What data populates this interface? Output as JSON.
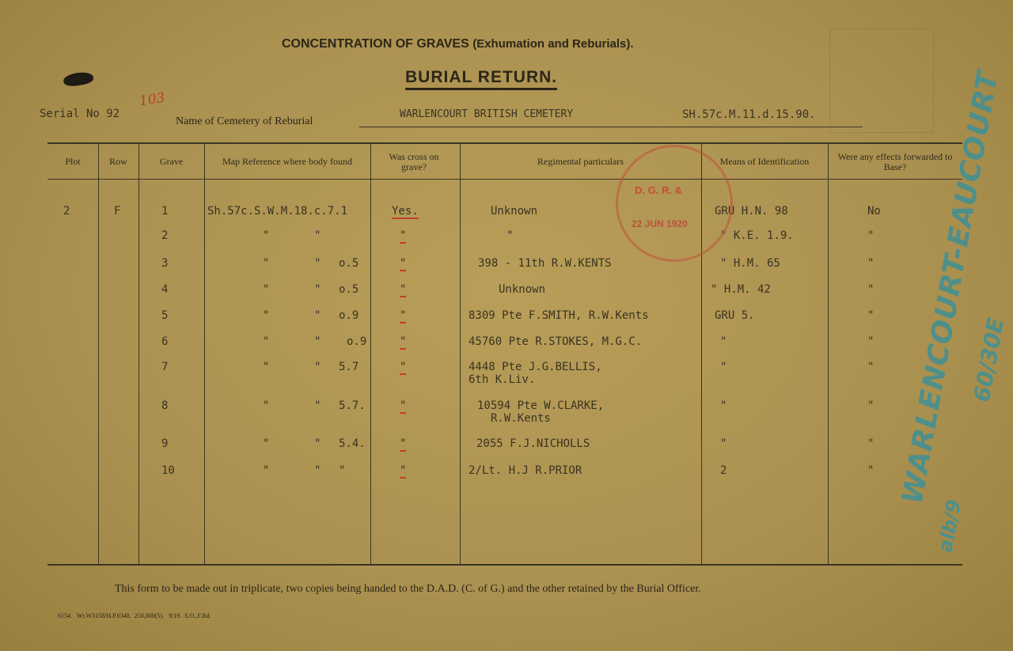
{
  "form": {
    "heading": "CONCENTRATION OF GRAVES",
    "heading_sub": "(Exhumation and Reburials).",
    "title": "BURIAL RETURN.",
    "serial_label": "Serial No",
    "serial_value": "92",
    "serial_annotation": "103",
    "cemetery_label": "Name of Cemetery of Reburial",
    "cemetery_value": "WARLENCOURT BRITISH CEMETERY",
    "cemetery_ref": "SH.57c.M.11.d.15.90.",
    "footer_note": "This form to be made out in triplicate, two copies being handed to the D.A.D. (C. of G.) and the other retained by the Burial Officer.",
    "printer_code": "6154.   Wt.W3158/H.P.6348.  250,000(5).   9/19.  S.O.,F.Rd."
  },
  "stamp": {
    "line1": "D. G. R. &",
    "line2": "22 JUN 1920",
    "color": "#c0503a"
  },
  "handwritten": {
    "vertical": "WARLENCOURT-EAUCOURT",
    "ref": "60/30E",
    "note": "alb/9",
    "color": "#4f8f8a"
  },
  "columns": [
    "Plot",
    "Row",
    "Grave",
    "Map Reference where body found",
    "Was cross on grave?",
    "Regimental particulars",
    "Means of Identification",
    "Were any effects forwarded to Base?"
  ],
  "rows": [
    {
      "plot": "2",
      "row": "F",
      "grave": "1",
      "map_a": "Sh.57c.S.W.M.18.c.7.1",
      "map_b": "",
      "map_c": "",
      "cross": "Yes.",
      "particulars": "Unknown",
      "particulars2": "",
      "ident": "GRU H.N. 98",
      "effects": "No"
    },
    {
      "plot": "",
      "row": "",
      "grave": "2",
      "map_a": "\"",
      "map_b": "\"",
      "map_c": "",
      "cross": "\"",
      "particulars": "\"",
      "particulars2": "",
      "ident": "\" K.E. 1.9.",
      "effects": "\""
    },
    {
      "plot": "",
      "row": "",
      "grave": "3",
      "map_a": "\"",
      "map_b": "\"",
      "map_c": "o.5",
      "cross": "\"",
      "particulars": "398 - 11th R.W.KENTS",
      "particulars2": "",
      "ident": "\"  H.M. 65",
      "effects": "\""
    },
    {
      "plot": "",
      "row": "",
      "grave": "4",
      "map_a": "\"",
      "map_b": "\"",
      "map_c": "o.5",
      "cross": "\"",
      "particulars": "Unknown",
      "particulars2": "",
      "ident": "\" H.M. 42",
      "effects": "\""
    },
    {
      "plot": "",
      "row": "",
      "grave": "5",
      "map_a": "\"",
      "map_b": "\"",
      "map_c": "o.9",
      "cross": "\"",
      "particulars": "8309 Pte F.SMITH, R.W.Kents",
      "particulars2": "",
      "ident": "GRU 5.",
      "effects": "\""
    },
    {
      "plot": "",
      "row": "",
      "grave": "6",
      "map_a": "\"",
      "map_b": "\"",
      "map_c": "o.9",
      "cross": "\"",
      "particulars": "45760 Pte R.STOKES, M.G.C.",
      "particulars2": "",
      "ident": "\"",
      "effects": "\""
    },
    {
      "plot": "",
      "row": "",
      "grave": "7",
      "map_a": "\"",
      "map_b": "\"",
      "map_c": "5.7",
      "cross": "\"",
      "particulars": "4448 Pte J.G.BELLIS,",
      "particulars2": "6th K.Liv.",
      "ident": "\"",
      "effects": "\""
    },
    {
      "plot": "",
      "row": "",
      "grave": "8",
      "map_a": "\"",
      "map_b": "\"",
      "map_c": "5.7.",
      "cross": "\"",
      "particulars": "10594 Pte W.CLARKE,",
      "particulars2": "R.W.Kents",
      "ident": "\"",
      "effects": "\""
    },
    {
      "plot": "",
      "row": "",
      "grave": "9",
      "map_a": "\"",
      "map_b": "\"",
      "map_c": "5.4.",
      "cross": "\"",
      "particulars": "2055 F.J.NICHOLLS",
      "particulars2": "",
      "ident": "\"",
      "effects": "\""
    },
    {
      "plot": "",
      "row": "",
      "grave": "10",
      "map_a": "\"",
      "map_b": "\"",
      "map_c": "\"",
      "cross": "\"",
      "particulars": "2/Lt. H.J R.PRIOR",
      "particulars2": "",
      "ident": "2",
      "effects": "\""
    }
  ]
}
